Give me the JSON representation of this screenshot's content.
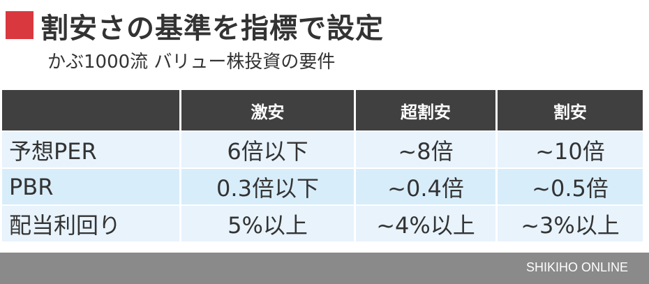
{
  "header": {
    "title": "割安さの基準を指標で設定",
    "subtitle": "かぶ1000流 バリュー株投資の要件",
    "accent": "#d9383f"
  },
  "table": {
    "columns": [
      "",
      "激安",
      "超割安",
      "割安"
    ],
    "rows": [
      {
        "label": "予想PER",
        "values": [
          "6倍以下",
          "~8倍",
          "~10倍"
        ]
      },
      {
        "label": "PBR",
        "values": [
          "0.3倍以下",
          "~0.4倍",
          "~0.5倍"
        ]
      },
      {
        "label": "配当利回り",
        "values": [
          "5%以上",
          "~4%以上",
          "~3%以上"
        ]
      }
    ]
  },
  "footer": {
    "source": "SHIKIHO ONLINE"
  }
}
